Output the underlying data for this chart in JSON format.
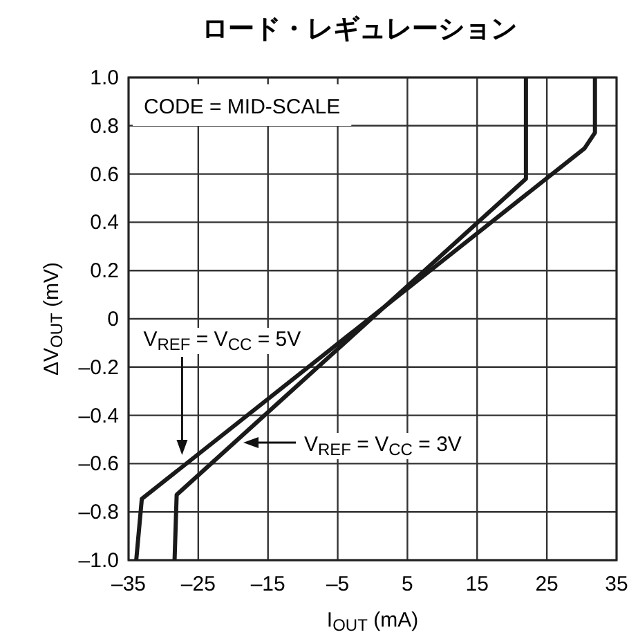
{
  "chart_data": {
    "type": "line",
    "title": "ロード・レギュレーション",
    "xlabel": "I$_{OUT}$ (mA)",
    "ylabel": "ΔV$_{OUT}$ (mV)",
    "xlim": [
      -35,
      35
    ],
    "ylim": [
      -1,
      1
    ],
    "xticks": [
      {
        "value": -35,
        "label": "–35"
      },
      {
        "value": -25,
        "label": "–25"
      },
      {
        "value": -15,
        "label": "–15"
      },
      {
        "value": -5,
        "label": "–5"
      },
      5,
      15,
      25,
      35
    ],
    "yticks": [
      {
        "value": -1,
        "label": "–1.0"
      },
      {
        "value": -0.8,
        "label": "–0.8"
      },
      {
        "value": -0.6,
        "label": "–0.6"
      },
      {
        "value": -0.4,
        "label": "–0.4"
      },
      {
        "value": -0.2,
        "label": "–0.2"
      },
      0,
      {
        "value": 0.2,
        "label": "0.2"
      },
      {
        "value": 0.4,
        "label": "0.4"
      },
      {
        "value": 0.6,
        "label": "0.6"
      },
      {
        "value": 0.8,
        "label": "0.8"
      },
      {
        "value": 1,
        "label": "1.0"
      }
    ],
    "grid": true,
    "marker": "none",
    "line_style": "solid",
    "series": [
      {
        "color": "#1a1a1a",
        "x": [
          -33.9,
          -33.1,
          30.4,
          31.9,
          31.9
        ],
        "values": [
          -1.0,
          -0.746,
          0.706,
          0.771,
          1.0
        ]
      },
      {
        "color": "#1a1a1a",
        "x": [
          -28.4,
          -28.1,
          22.0,
          22.0
        ],
        "values": [
          -1.0,
          -0.729,
          0.58,
          1.0
        ]
      }
    ],
    "annotations": [
      "CODE = MID-SCALE",
      "V$_{REF}$ = V$_{CC}$ = 5V",
      "V$_{REF}$ = V$_{CC}$ = 3V"
    ]
  }
}
